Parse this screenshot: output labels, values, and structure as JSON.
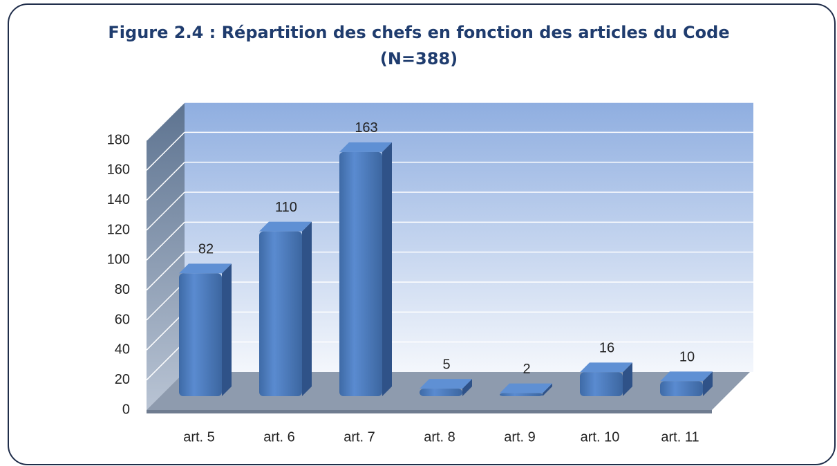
{
  "chart_data": {
    "type": "bar",
    "title": "Figure 2.4 : Répartition des chefs en fonction des articles du Code",
    "subtitle": "(N=388)",
    "categories": [
      "art. 5",
      "art. 6",
      "art. 7",
      "art. 8",
      "art. 9",
      "art. 10",
      "art. 11"
    ],
    "values": [
      82,
      110,
      163,
      5,
      2,
      16,
      10
    ],
    "color": "#4f81bd",
    "ylim": [
      0,
      180
    ],
    "yticks": [
      0,
      20,
      40,
      60,
      80,
      100,
      120,
      140,
      160,
      180
    ],
    "grid": true
  }
}
